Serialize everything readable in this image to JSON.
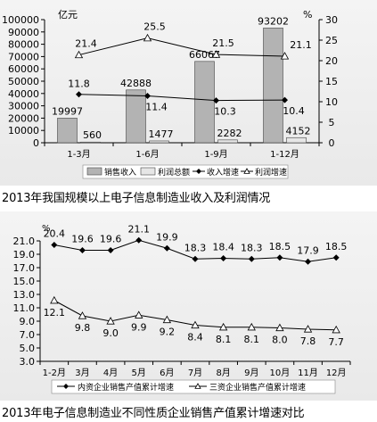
{
  "chart_data": [
    {
      "type": "bar",
      "categories": [
        "1-3月",
        "1-6月",
        "1-9月",
        "1-12月"
      ],
      "y_left_unit": "亿元",
      "y_right_unit": "%",
      "y_left_ticks": [
        "0",
        "10000",
        "20000",
        "30000",
        "40000",
        "50000",
        "60000",
        "70000",
        "80000",
        "90000",
        "100000"
      ],
      "y_right_ticks": [
        "0",
        "5",
        "10",
        "15",
        "20",
        "25",
        "30"
      ],
      "ylim_left": [
        0,
        100000
      ],
      "ylim_right": [
        0,
        30
      ],
      "series": [
        {
          "name": "销售收入",
          "kind": "bar",
          "axis": "left",
          "values": [
            19997,
            42888,
            66067,
            93202
          ],
          "labels": [
            "19997",
            "42888",
            "66067",
            "93202"
          ]
        },
        {
          "name": "利润总额",
          "kind": "bar",
          "axis": "left",
          "values": [
            560,
            1477,
            2282,
            4152
          ],
          "labels": [
            "560",
            "1477",
            "2282",
            "4152"
          ]
        },
        {
          "name": "收入增速",
          "kind": "line",
          "marker": "diamond",
          "axis": "right",
          "values": [
            11.8,
            11.4,
            10.3,
            10.4
          ],
          "labels": [
            "11.8",
            "11.4",
            "10.3",
            "10.4"
          ]
        },
        {
          "name": "利润增速",
          "kind": "line",
          "marker": "triangle",
          "axis": "right",
          "values": [
            21.4,
            25.5,
            21.5,
            21.1
          ],
          "labels": [
            "21.4",
            "25.5",
            "21.5",
            "21.1"
          ]
        }
      ],
      "colors": {
        "sales": "#b3b3b3",
        "profit": "#e6e6e6",
        "line": "#000000"
      },
      "legend_placement": "bottom"
    },
    {
      "type": "line",
      "categories": [
        "1-2月",
        "3月",
        "4月",
        "5月",
        "6月",
        "7月",
        "8月",
        "9月",
        "10月",
        "11月",
        "12月"
      ],
      "y_unit": "%",
      "y_ticks": [
        "3.0",
        "5.0",
        "7.0",
        "9.0",
        "11.0",
        "13.0",
        "15.0",
        "17.0",
        "19.0",
        "21.0"
      ],
      "ylim": [
        3,
        21
      ],
      "series": [
        {
          "name": "内资企业销售产值累计增速",
          "marker": "diamond",
          "values": [
            20.4,
            19.6,
            19.6,
            21.1,
            19.9,
            18.3,
            18.4,
            18.3,
            18.5,
            17.9,
            18.5
          ],
          "labels": [
            "20.4",
            "19.6",
            "19.6",
            "21.1",
            "19.9",
            "18.3",
            "18.4",
            "18.3",
            "18.5",
            "17.9",
            "18.5"
          ]
        },
        {
          "name": "三资企业销售产值累计增速",
          "marker": "triangle",
          "values": [
            12.1,
            9.8,
            9.0,
            9.9,
            9.2,
            8.4,
            8.1,
            8.1,
            8.0,
            7.8,
            7.7
          ],
          "labels": [
            "12.1",
            "9.8",
            "9.0",
            "9.9",
            "9.2",
            "8.4",
            "8.1",
            "8.1",
            "8.0",
            "7.8",
            "7.7"
          ]
        }
      ],
      "legend_placement": "bottom"
    }
  ],
  "captions": {
    "chart1": "2013年我国规模以上电子信息制造业收入及利润情况",
    "chart2": "2013年电子信息制造业不同性质企业销售产值累计增速对比"
  }
}
